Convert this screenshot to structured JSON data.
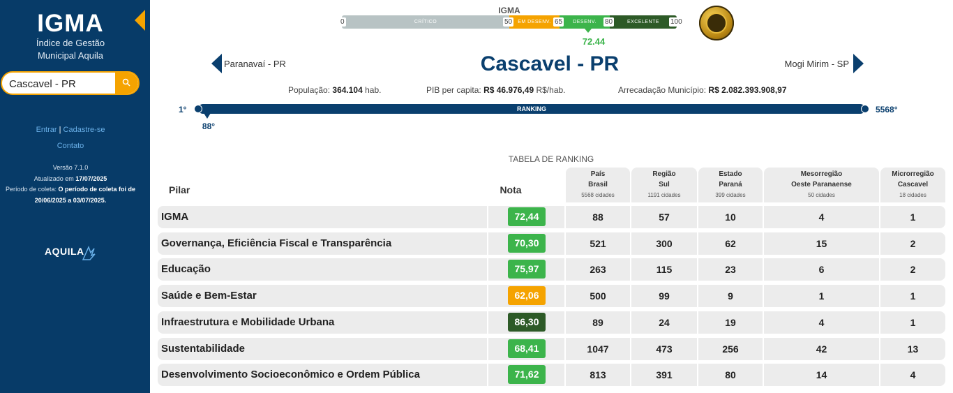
{
  "sidebar": {
    "title": "IGMA",
    "subtitle_line1": "Índice de Gestão",
    "subtitle_line2": "Municipal Aquila",
    "search_value": "Cascavel - PR",
    "login": "Entrar",
    "separator": "|",
    "signup": "Cadastre-se",
    "contact": "Contato",
    "version": "Versão 7.1.0",
    "updated_label": "Atualizado em",
    "updated_date": "17/07/2025",
    "period_label": "Período de coleta:",
    "period_text_1": "O período de coleta foi de",
    "period_text_2": "20/06/2025 a 03/07/2025.",
    "brand": "AQUILA"
  },
  "scale": {
    "title": "IGMA",
    "segments": [
      "CRÍTICO",
      "EM DESENV.",
      "DESENV.",
      "EXCELENTE"
    ],
    "ticks": [
      "0",
      "50",
      "65",
      "80",
      "100"
    ],
    "colors": [
      "#b8c3c4",
      "#f5a300",
      "#3cb44b",
      "#2d5a27"
    ],
    "value": "72.44"
  },
  "nav": {
    "prev": "Paranavaí - PR",
    "current": "Cascavel - PR",
    "next": "Mogi Mirim - SP"
  },
  "stats": {
    "population_label": "População:",
    "population_value": "364.104",
    "population_unit": "hab.",
    "pib_label": "PIB per capita:",
    "pib_value": "R$ 46.976,49",
    "pib_unit": "R$/hab.",
    "revenue_label": "Arrecadação Município:",
    "revenue_value": "R$ 2.082.393.908,97"
  },
  "ranking": {
    "min": "1°",
    "max": "5568°",
    "label": "RANKING",
    "position": "88°"
  },
  "table": {
    "title": "TABELA DE RANKING",
    "pilar_header": "Pilar",
    "nota_header": "Nota",
    "columns": [
      {
        "line1": "País",
        "line2": "Brasil",
        "count": "5568 cidades"
      },
      {
        "line1": "Região",
        "line2": "Sul",
        "count": "1191 cidades"
      },
      {
        "line1": "Estado",
        "line2": "Paraná",
        "count": "399 cidades"
      },
      {
        "line1": "Mesorregião",
        "line2": "Oeste Paranaense",
        "count": "50 cidades"
      },
      {
        "line1": "Microrregião",
        "line2": "Cascavel",
        "count": "18 cidades"
      }
    ],
    "rows": [
      {
        "pilar": "IGMA",
        "nota": "72,44",
        "color": "#3cb44b",
        "ranks": [
          "88",
          "57",
          "10",
          "4",
          "1"
        ]
      },
      {
        "pilar": "Governança, Eficiência Fiscal e Transparência",
        "nota": "70,30",
        "color": "#3cb44b",
        "ranks": [
          "521",
          "300",
          "62",
          "15",
          "2"
        ]
      },
      {
        "pilar": "Educação",
        "nota": "75,97",
        "color": "#3cb44b",
        "ranks": [
          "263",
          "115",
          "23",
          "6",
          "2"
        ]
      },
      {
        "pilar": "Saúde e Bem-Estar",
        "nota": "62,06",
        "color": "#f5a300",
        "ranks": [
          "500",
          "99",
          "9",
          "1",
          "1"
        ]
      },
      {
        "pilar": "Infraestrutura e Mobilidade Urbana",
        "nota": "86,30",
        "color": "#2d5a27",
        "ranks": [
          "89",
          "24",
          "19",
          "4",
          "1"
        ]
      },
      {
        "pilar": "Sustentabilidade",
        "nota": "68,41",
        "color": "#3cb44b",
        "ranks": [
          "1047",
          "473",
          "256",
          "42",
          "13"
        ]
      },
      {
        "pilar": "Desenvolvimento Socioeconômico e Ordem Pública",
        "nota": "71,62",
        "color": "#3cb44b",
        "ranks": [
          "813",
          "391",
          "80",
          "14",
          "4"
        ]
      }
    ]
  }
}
